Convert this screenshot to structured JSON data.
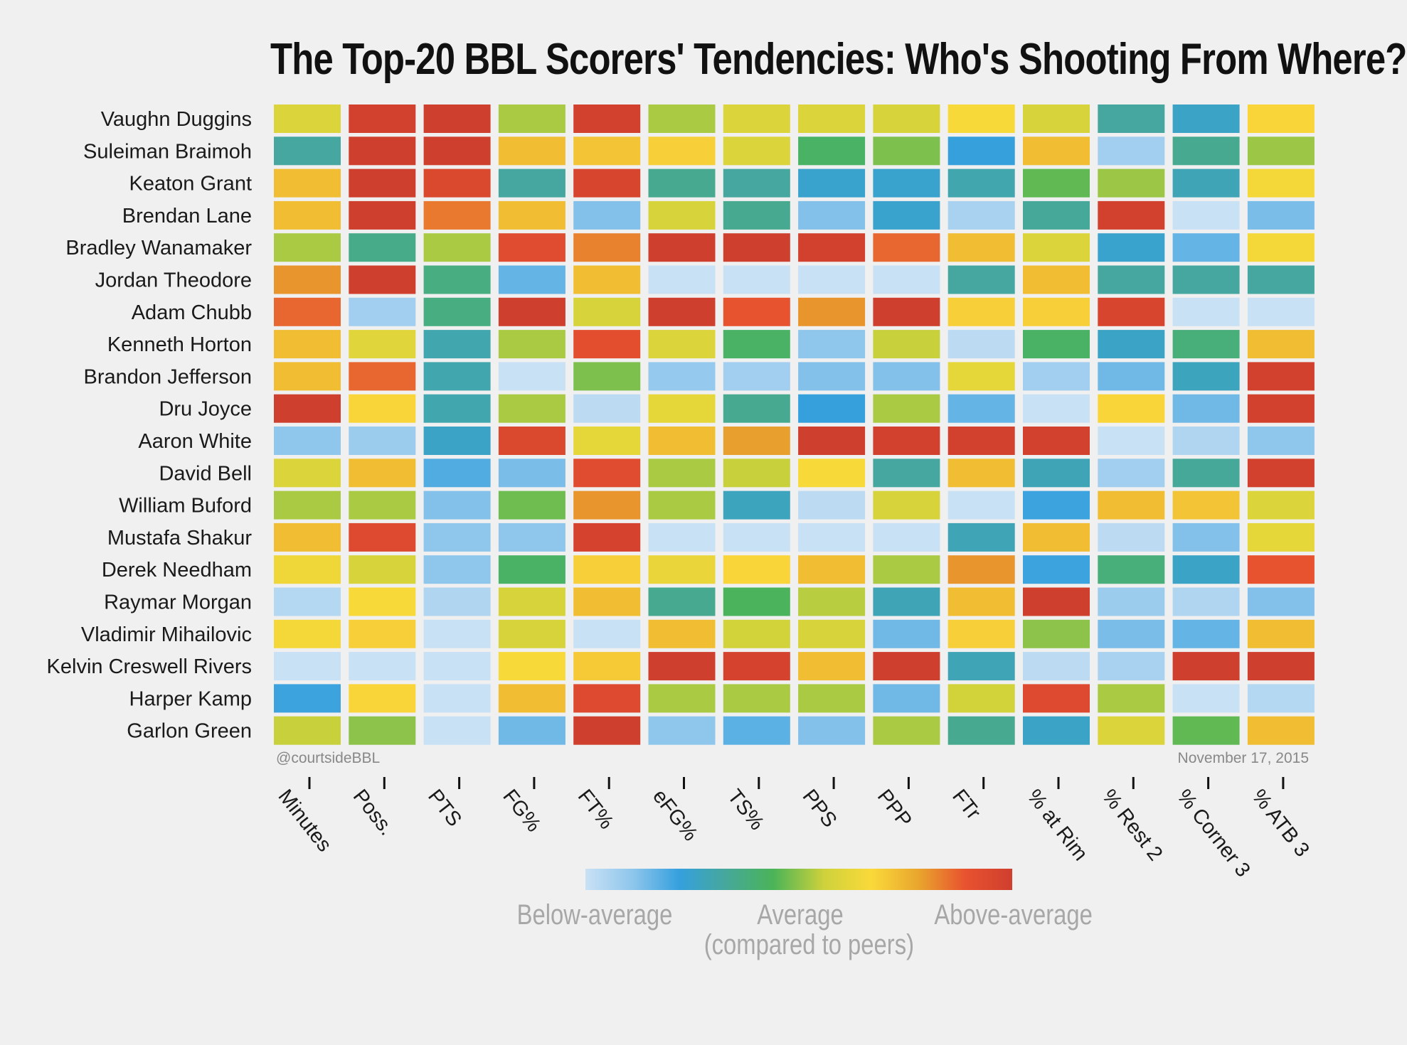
{
  "title": "The Top-20 BBL Scorers' Tendencies: Who's Shooting From Where?",
  "credit_left": "@courtsideBBL",
  "credit_right": "November 17, 2015",
  "legend": {
    "below": "Below-average",
    "average": "Average",
    "above": "Above-average",
    "note": "(compared to peers)"
  },
  "palette": [
    "#c9e1f5",
    "#8fc6ec",
    "#35a0de",
    "#46a89a",
    "#4ab458",
    "#cfd23b",
    "#fad93a",
    "#e9a62d",
    "#e8522f",
    "#cf3f2e"
  ],
  "chart_data": {
    "type": "heatmap",
    "title": "The Top-20 BBL Scorers' Tendencies: Who's Shooting From Where?",
    "scale_note": "cell values: 1 = below-average ... 5 = average ... 9 = above-average (compared to peers)",
    "columns": [
      "Minutes",
      "Poss.",
      "PTS",
      "FG%",
      "FT%",
      "eFG%",
      "TS%",
      "PPS",
      "PPP",
      "FTr",
      "% at Rim",
      "% Rest 2",
      "% Corner 3",
      "% ATB 3"
    ],
    "rows": [
      {
        "name": "Vaughn Duggins",
        "values": [
          5.6,
          8.8,
          8.9,
          5.1,
          8.8,
          5.1,
          5.6,
          5.6,
          5.5,
          6.2,
          5.5,
          3.5,
          3.0,
          6.3
        ]
      },
      {
        "name": "Suleiman Braimoh",
        "values": [
          3.5,
          8.9,
          8.9,
          6.7,
          6.6,
          6.4,
          5.6,
          4.3,
          4.8,
          2.7,
          6.7,
          1.5,
          3.7,
          5.0
        ]
      },
      {
        "name": "Keaton Grant",
        "values": [
          6.7,
          8.9,
          8.5,
          3.5,
          8.6,
          3.7,
          3.5,
          2.9,
          2.9,
          3.3,
          4.6,
          5.0,
          3.2,
          6.1
        ]
      },
      {
        "name": "Brendan Lane",
        "values": [
          6.7,
          8.9,
          7.6,
          6.7,
          1.9,
          5.5,
          3.7,
          1.9,
          2.9,
          1.4,
          3.6,
          8.8,
          0.9,
          2.0
        ]
      },
      {
        "name": "Bradley Wanamaker",
        "values": [
          5.1,
          3.8,
          5.1,
          8.3,
          7.5,
          8.9,
          8.9,
          8.8,
          7.8,
          6.7,
          5.6,
          2.9,
          2.2,
          6.1
        ]
      },
      {
        "name": "Jordan Theodore",
        "values": [
          7.3,
          8.9,
          3.9,
          2.2,
          6.7,
          0.9,
          0.9,
          0.9,
          0.9,
          3.5,
          6.7,
          3.5,
          3.5,
          3.5
        ]
      },
      {
        "name": "Adam Chubb",
        "values": [
          7.8,
          1.5,
          3.9,
          8.9,
          5.5,
          8.9,
          8.0,
          7.3,
          8.9,
          6.4,
          6.4,
          8.6,
          0.9,
          0.9
        ]
      },
      {
        "name": "Kenneth Horton",
        "values": [
          6.7,
          5.7,
          3.3,
          5.1,
          8.2,
          5.6,
          4.3,
          1.8,
          5.3,
          1.1,
          4.3,
          3.0,
          4.0,
          6.7
        ]
      },
      {
        "name": "Brandon Jefferson",
        "values": [
          6.7,
          7.8,
          3.3,
          0.9,
          4.8,
          1.7,
          1.5,
          1.9,
          1.9,
          5.8,
          1.5,
          2.1,
          3.1,
          8.8
        ]
      },
      {
        "name": "Dru Joyce",
        "values": [
          8.9,
          6.3,
          3.3,
          5.1,
          1.1,
          5.8,
          3.7,
          2.7,
          5.1,
          2.2,
          0.9,
          6.3,
          2.1,
          8.8
        ]
      },
      {
        "name": "Aaron White",
        "values": [
          1.8,
          1.6,
          3.0,
          8.5,
          5.8,
          6.7,
          7.2,
          8.9,
          8.8,
          8.8,
          8.8,
          0.9,
          1.3,
          1.8
        ]
      },
      {
        "name": "David Bell",
        "values": [
          5.6,
          6.7,
          2.4,
          2.0,
          8.3,
          5.1,
          5.3,
          6.2,
          3.5,
          6.7,
          3.2,
          1.5,
          3.6,
          8.8
        ]
      },
      {
        "name": "William Buford",
        "values": [
          5.1,
          5.1,
          1.9,
          4.7,
          7.3,
          5.1,
          3.1,
          1.1,
          5.5,
          0.9,
          2.6,
          6.7,
          6.6,
          5.6
        ]
      },
      {
        "name": "Mustafa Shakur",
        "values": [
          6.7,
          8.4,
          1.8,
          1.8,
          8.7,
          0.9,
          0.9,
          0.9,
          0.9,
          3.2,
          6.7,
          1.1,
          1.9,
          5.8
        ]
      },
      {
        "name": "Derek Needham",
        "values": [
          6.0,
          5.5,
          1.8,
          4.3,
          6.4,
          5.9,
          6.3,
          6.7,
          5.1,
          7.3,
          2.6,
          4.0,
          3.0,
          8.0
        ]
      },
      {
        "name": "Raymar Morgan",
        "values": [
          1.2,
          6.2,
          1.3,
          5.5,
          6.7,
          3.7,
          4.4,
          5.2,
          3.2,
          6.7,
          8.9,
          1.6,
          1.3,
          1.9
        ]
      },
      {
        "name": "Vladimir Mihailovic",
        "values": [
          6.1,
          6.4,
          0.9,
          5.5,
          0.9,
          6.7,
          5.4,
          5.5,
          2.1,
          6.4,
          4.9,
          2.0,
          2.2,
          6.7
        ]
      },
      {
        "name": "Kelvin Creswell Rivers",
        "values": [
          0.9,
          0.9,
          0.9,
          6.2,
          6.5,
          8.9,
          8.7,
          6.7,
          8.9,
          3.2,
          1.1,
          1.4,
          8.9,
          8.9
        ]
      },
      {
        "name": "Harper Kamp",
        "values": [
          2.6,
          6.3,
          0.9,
          6.7,
          8.4,
          5.1,
          5.1,
          5.1,
          2.1,
          5.4,
          8.4,
          5.1,
          0.9,
          1.2
        ]
      },
      {
        "name": "Garlon Green",
        "values": [
          5.3,
          4.9,
          0.9,
          2.1,
          8.9,
          1.8,
          2.3,
          1.9,
          5.1,
          3.7,
          3.0,
          5.6,
          4.6,
          6.7
        ]
      }
    ],
    "legend": {
      "low": "Below-average",
      "mid": "Average",
      "high": "Above-average",
      "note": "(compared to peers)"
    }
  }
}
